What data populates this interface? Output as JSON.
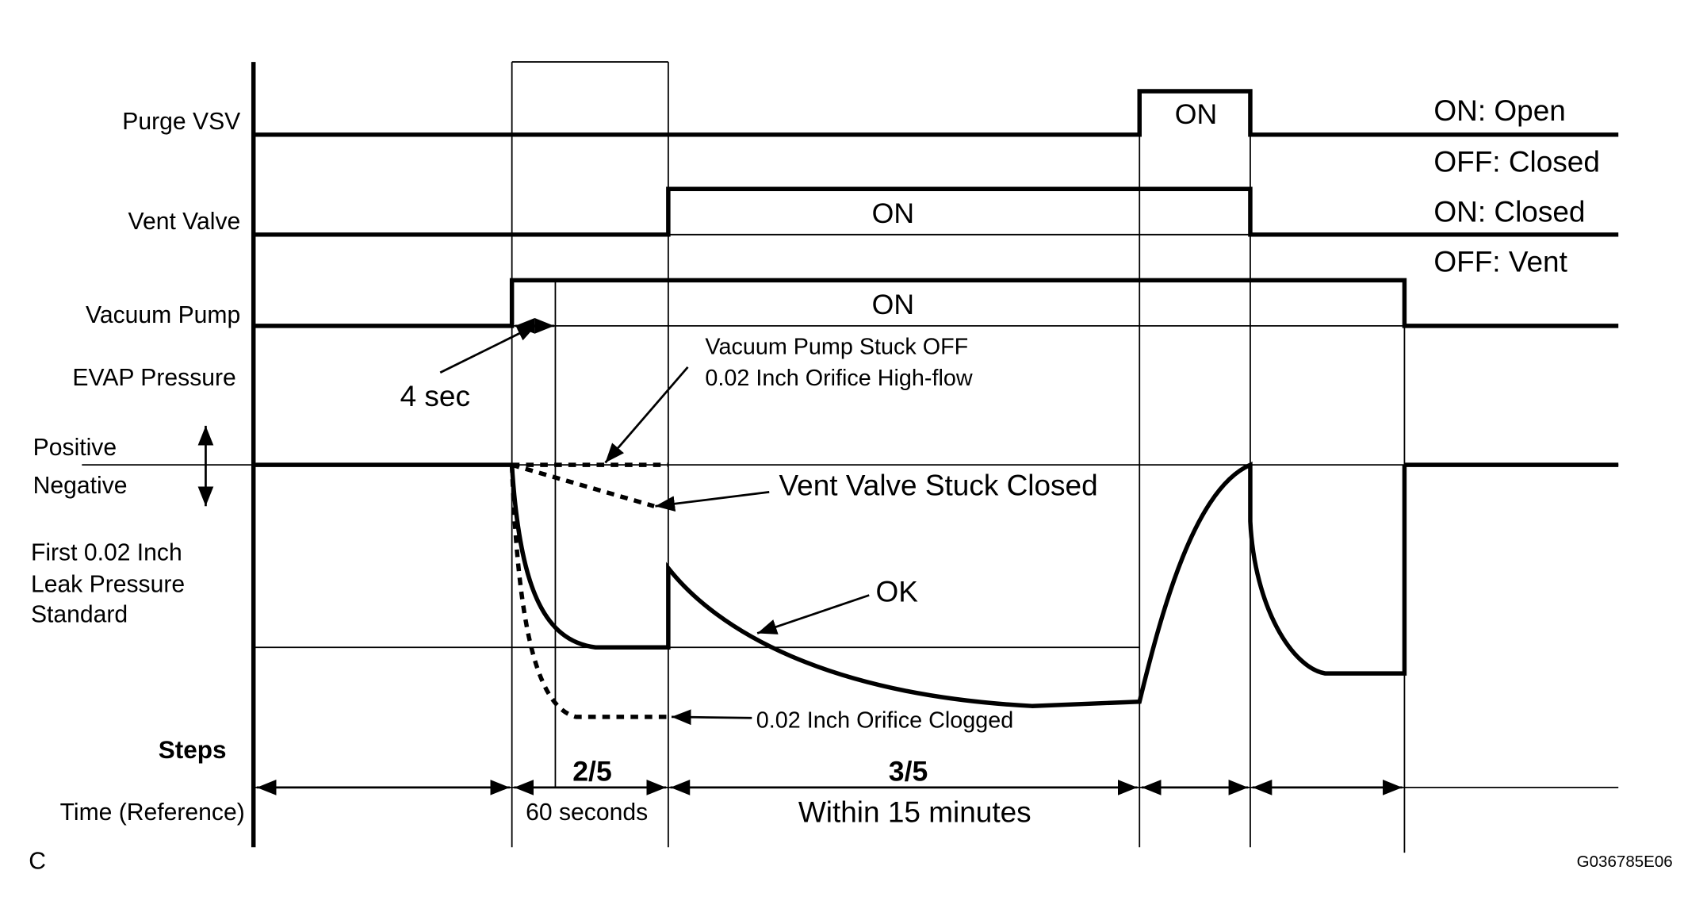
{
  "signals": {
    "purge_vsv": "Purge VSV",
    "vent_valve": "Vent Valve",
    "vacuum_pump": "Vacuum Pump",
    "evap_pressure": "EVAP Pressure",
    "positive": "Positive",
    "negative": "Negative",
    "standard_line1": "First 0.02 Inch",
    "standard_line2": "Leak Pressure",
    "standard_line3": "Standard",
    "steps": "Steps",
    "time": "Time (Reference)"
  },
  "states": {
    "purge_on": "ON",
    "vent_on": "ON",
    "pump_on": "ON"
  },
  "legend": {
    "purge_on": "ON: Open",
    "purge_off": "OFF: Closed",
    "vent_on": "ON: Closed",
    "vent_off": "OFF: Vent"
  },
  "annotations": {
    "four_sec": "4 sec",
    "stuck_off_line1": "Vacuum Pump Stuck OFF",
    "stuck_off_line2": "0.02 Inch Orifice High-flow",
    "vent_stuck": "Vent Valve Stuck Closed",
    "ok": "OK",
    "clogged": "0.02 Inch Orifice Clogged"
  },
  "steps_row": {
    "step_2": "2/5",
    "step_3": "3/5",
    "time_2": "60 seconds",
    "time_3": "Within 15 minutes"
  },
  "corner_label": "C",
  "figure_id": "G036785E06"
}
